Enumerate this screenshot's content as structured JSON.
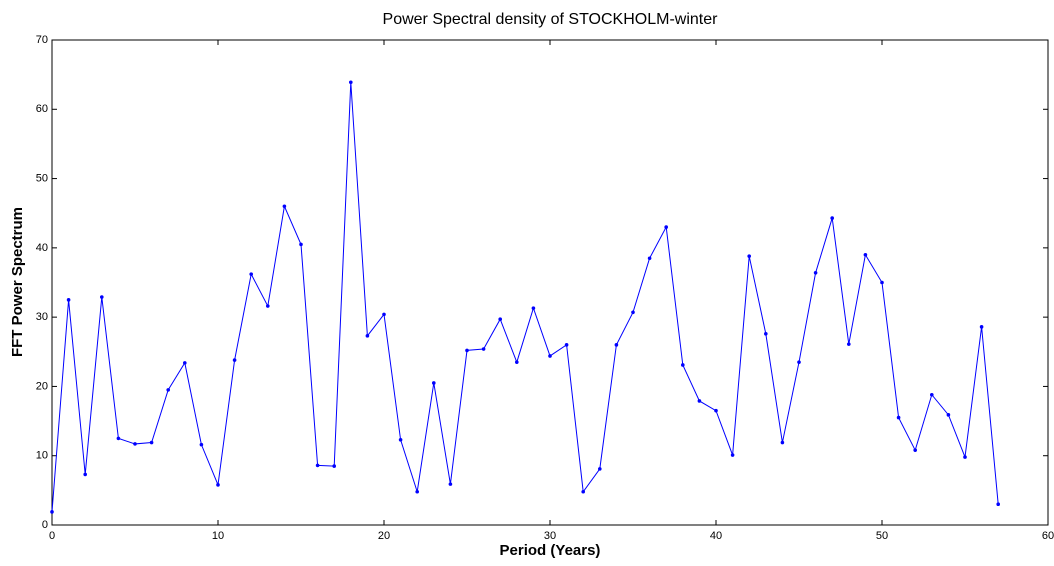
{
  "chart_data": {
    "type": "line",
    "title": "Power Spectral density of STOCKHOLM-winter",
    "xlabel": "Period (Years)",
    "ylabel": "FFT Power Spectrum",
    "x": [
      0,
      1,
      2,
      3,
      4,
      5,
      6,
      7,
      8,
      9,
      10,
      11,
      12,
      13,
      14,
      15,
      16,
      17,
      18,
      19,
      20,
      21,
      22,
      23,
      24,
      25,
      26,
      27,
      28,
      29,
      30,
      31,
      32,
      33,
      34,
      35,
      36,
      37,
      38,
      39,
      40,
      41,
      42,
      43,
      44,
      45,
      46,
      47,
      48,
      49,
      50,
      51,
      52,
      53,
      54,
      55,
      56,
      57
    ],
    "series": [
      {
        "color": "#0000ff",
        "values": [
          1.9,
          32.5,
          7.3,
          32.9,
          12.5,
          11.7,
          11.9,
          19.5,
          23.4,
          11.6,
          5.8,
          23.8,
          36.2,
          31.6,
          46.0,
          40.5,
          8.6,
          8.5,
          63.9,
          27.3,
          30.4,
          12.3,
          4.8,
          20.5,
          5.9,
          25.2,
          25.4,
          29.7,
          23.5,
          31.3,
          24.4,
          26.0,
          4.8,
          8.1,
          26.0,
          30.7,
          38.5,
          43.0,
          23.1,
          17.9,
          16.5,
          10.1,
          38.8,
          27.6,
          11.9,
          23.5,
          36.4,
          44.3,
          26.1,
          39.0,
          35.0,
          15.5,
          10.8,
          18.8,
          15.9,
          9.8,
          28.6,
          3.0
        ]
      }
    ],
    "xlim": [
      0,
      60
    ],
    "xticks": [
      0,
      10,
      20,
      30,
      40,
      50,
      60
    ],
    "ylim": [
      0,
      70
    ],
    "yticks": [
      0,
      10,
      20,
      30,
      40,
      50,
      60,
      70
    ]
  }
}
